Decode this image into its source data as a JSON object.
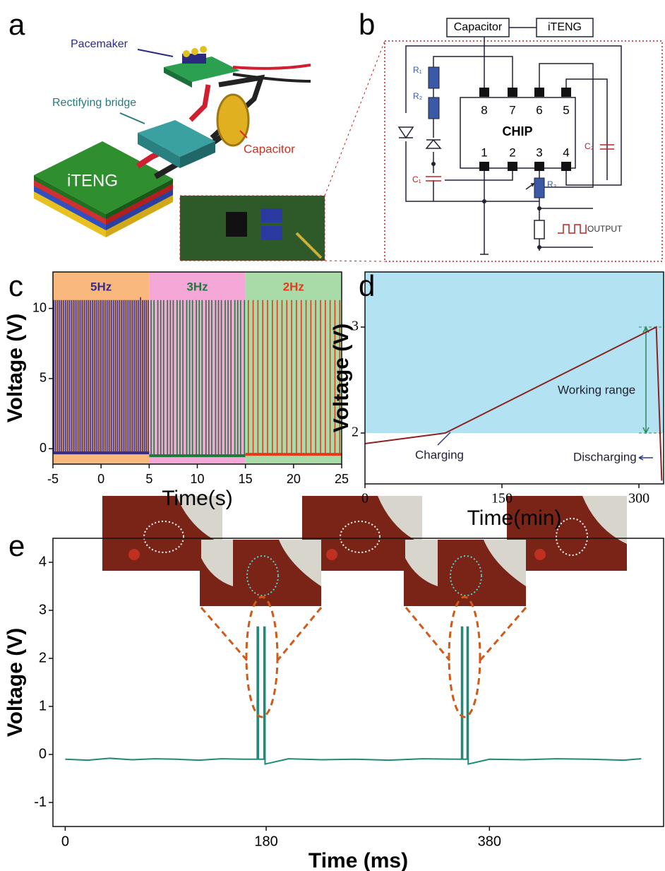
{
  "panel_labels": [
    "a",
    "b",
    "c",
    "d",
    "e"
  ],
  "device_a": {
    "labels": [
      "Pacemaker",
      "Rectifying bridge",
      "Capacitor",
      "iTENG"
    ]
  },
  "circuit_b": {
    "boxes": [
      "Capacitor",
      "iTENG"
    ],
    "chip": "CHIP",
    "pins": [
      "1",
      "2",
      "3",
      "4",
      "5",
      "6",
      "7",
      "8"
    ],
    "components": [
      "R₁",
      "R₂",
      "R₃",
      "C₁",
      "C₂"
    ],
    "output": "OUTPUT"
  },
  "chart_data": [
    {
      "type": "spike",
      "xlabel": "Time(s)",
      "ylabel": "Voltage (V)",
      "xlim": [
        -5,
        25
      ],
      "ylim": [
        -1.1,
        12.6
      ],
      "xticks": [
        -5,
        0,
        5,
        10,
        15,
        20,
        25
      ],
      "yticks": [
        0,
        5,
        10
      ],
      "series": [
        {
          "name": "5Hz",
          "color": "#3b2d84",
          "band_color": "#f9b97c",
          "span": [
            -5,
            5
          ],
          "baseline": -0.3,
          "x": [
            -4.9,
            -4.7,
            -4.5,
            -4.3,
            -4.1,
            -3.9,
            -3.7,
            -3.5,
            -3.3,
            -3.1,
            -2.9,
            -2.7,
            -2.5,
            -2.3,
            -2.1,
            -1.9,
            -1.7,
            -1.5,
            -1.3,
            -1.1,
            -0.9,
            -0.7,
            -0.5,
            -0.3,
            -0.1,
            0.1,
            0.3,
            0.5,
            0.7,
            0.9,
            1.1,
            1.3,
            1.5,
            1.7,
            1.9,
            2.1,
            2.3,
            2.5,
            2.7,
            2.9,
            3.1,
            3.3,
            3.5,
            3.7,
            3.9,
            4.1,
            4.3,
            4.5,
            4.7,
            4.9
          ],
          "values": [
            10.6,
            10.6,
            10.6,
            10.6,
            10.6,
            10.6,
            10.6,
            10.6,
            10.6,
            10.6,
            10.6,
            10.6,
            10.6,
            10.6,
            10.6,
            10.6,
            10.6,
            10.6,
            10.6,
            10.6,
            10.6,
            10.6,
            10.6,
            10.6,
            10.6,
            10.6,
            10.6,
            10.6,
            10.6,
            10.6,
            10.6,
            10.6,
            10.6,
            10.6,
            10.6,
            10.6,
            10.6,
            10.6,
            10.6,
            10.6,
            10.6,
            10.6,
            10.6,
            10.6,
            10.6,
            10.8,
            10.6,
            10.6,
            10.6,
            10.6
          ]
        },
        {
          "name": "3Hz",
          "color": "#1e7a3c",
          "band_color": "#f5a8d8",
          "span": [
            5,
            15
          ],
          "baseline": -0.5,
          "x": [
            5.2,
            5.5,
            5.9,
            6.2,
            6.5,
            6.9,
            7.2,
            7.5,
            7.9,
            8.2,
            8.5,
            8.9,
            9.2,
            9.5,
            9.9,
            10.2,
            10.5,
            10.9,
            11.2,
            11.5,
            11.9,
            12.2,
            12.5,
            12.9,
            13.2,
            13.5,
            13.9,
            14.2,
            14.5,
            14.9
          ],
          "values": [
            10.6,
            10.6,
            10.6,
            10.6,
            10.6,
            10.6,
            10.6,
            10.6,
            10.6,
            10.6,
            10.6,
            10.6,
            10.6,
            10.6,
            10.6,
            10.6,
            10.6,
            10.6,
            10.6,
            10.6,
            10.6,
            10.6,
            10.6,
            10.6,
            10.6,
            10.6,
            10.6,
            10.6,
            10.6,
            10.6
          ]
        },
        {
          "name": "2Hz",
          "color": "#e8391c",
          "band_color": "#a9dba9",
          "span": [
            15,
            25
          ],
          "baseline": -0.4,
          "x": [
            15.3,
            15.8,
            16.3,
            16.8,
            17.3,
            17.8,
            18.3,
            18.8,
            19.3,
            19.8,
            20.3,
            20.8,
            21.3,
            21.8,
            22.3,
            22.8,
            23.3,
            23.8,
            24.3,
            24.8
          ],
          "values": [
            10.6,
            10.6,
            10.6,
            10.6,
            10.6,
            10.6,
            10.6,
            10.6,
            10.6,
            10.6,
            10.6,
            10.6,
            10.6,
            10.6,
            10.6,
            10.6,
            10.6,
            10.6,
            10.6,
            10.6
          ]
        }
      ]
    },
    {
      "type": "line",
      "xlabel": "Time(min)",
      "ylabel": "Voltage (V)",
      "xlim": [
        0,
        327
      ],
      "ylim": [
        1.52,
        3.52
      ],
      "xticks": [
        0,
        150,
        300
      ],
      "yticks": [
        2,
        3
      ],
      "working_range": {
        "label": "Working range",
        "range": [
          2,
          3
        ]
      },
      "annotations": [
        "Charging",
        "Discharging"
      ],
      "series": [
        {
          "color": "#8b2323",
          "x": [
            0,
            88,
            319,
            325
          ],
          "values": [
            1.9,
            2.0,
            3.0,
            1.55
          ]
        }
      ]
    },
    {
      "type": "line",
      "xlabel": "Time (ms)",
      "ylabel": "Voltage (V)",
      "xlim": [
        -11,
        536
      ],
      "ylim": [
        -1.5,
        4.5
      ],
      "xticks": [
        0,
        180,
        380
      ],
      "yticks": [
        -1,
        0,
        1,
        2,
        3,
        4
      ],
      "series": [
        {
          "color": "#1f8a78",
          "x": [
            0,
            20,
            40,
            60,
            80,
            100,
            120,
            140,
            160,
            172,
            172,
            173,
            173,
            178,
            178,
            179,
            179,
            200,
            230,
            260,
            290,
            320,
            355,
            355,
            356,
            356,
            360,
            360,
            361,
            361,
            380,
            410,
            440,
            470,
            500,
            516
          ],
          "values": [
            -0.1,
            -0.12,
            -0.08,
            -0.11,
            -0.09,
            -0.1,
            -0.12,
            -0.09,
            -0.1,
            -0.1,
            2.65,
            2.65,
            -0.1,
            -0.1,
            2.65,
            2.65,
            -0.2,
            -0.09,
            -0.11,
            -0.1,
            -0.12,
            -0.09,
            -0.1,
            2.65,
            2.65,
            -0.1,
            -0.1,
            2.65,
            2.65,
            -0.2,
            -0.1,
            -0.11,
            -0.09,
            -0.1,
            -0.12,
            -0.09
          ]
        }
      ]
    }
  ]
}
